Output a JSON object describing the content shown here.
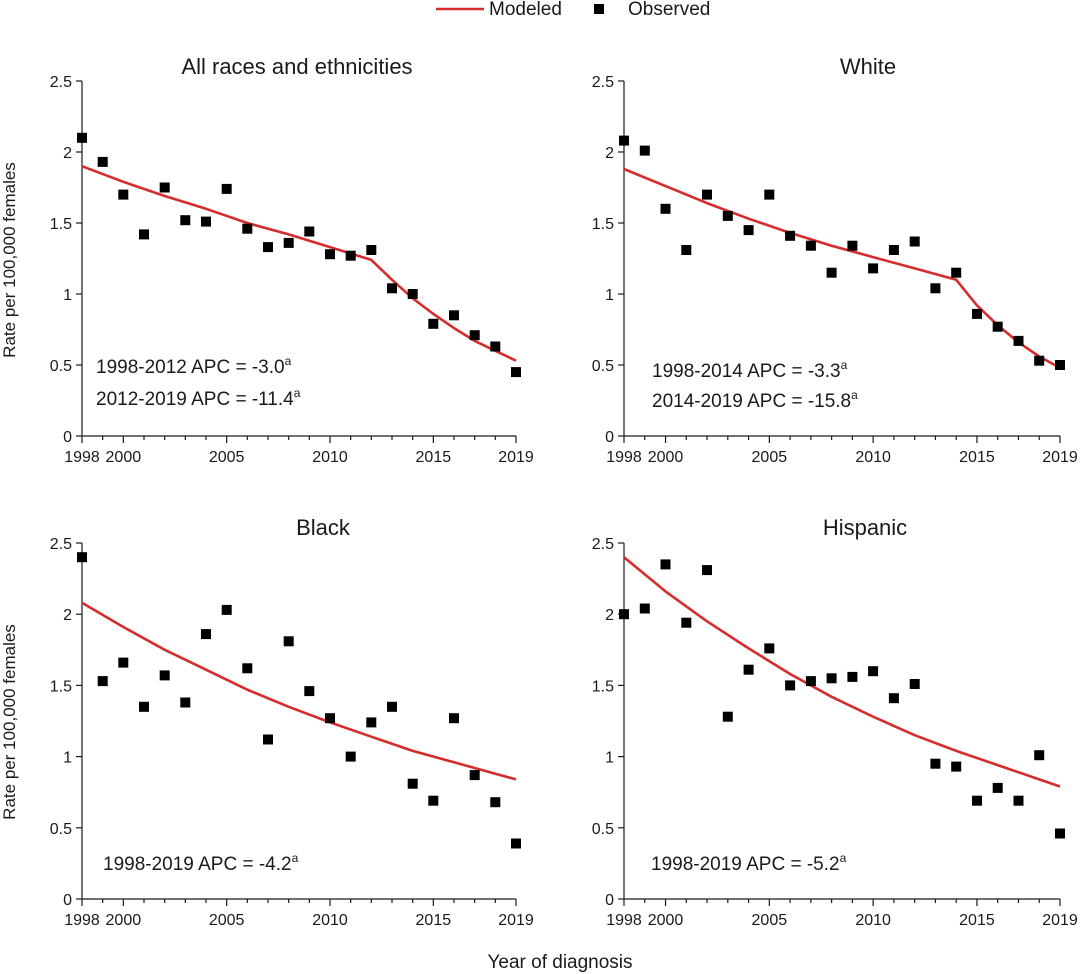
{
  "legend": {
    "modeled_label": "Modeled",
    "observed_label": "Observed"
  },
  "colors": {
    "modeled": "#d62c2c",
    "observed": "#000000",
    "axis": "#1a1a1a"
  },
  "shared_ylabel": "Rate per 100,000 females",
  "shared_xlabel": "Year of diagnosis",
  "chart_data": [
    {
      "type": "line",
      "title": "All races and ethnicities",
      "xlim": [
        1998,
        2019
      ],
      "ylim": [
        0,
        2.5
      ],
      "x_ticks": [
        "1998",
        "2000",
        "2005",
        "2010",
        "2015",
        "2019"
      ],
      "y_ticks": [
        "0",
        "0.5",
        "1",
        "1.5",
        "2",
        "2.5"
      ],
      "series": [
        {
          "name": "Observed",
          "x": [
            1998,
            1999,
            2000,
            2001,
            2002,
            2003,
            2004,
            2005,
            2006,
            2007,
            2008,
            2009,
            2010,
            2011,
            2012,
            2013,
            2014,
            2015,
            2016,
            2017,
            2018,
            2019
          ],
          "values": [
            2.1,
            1.93,
            1.7,
            1.42,
            1.75,
            1.52,
            1.51,
            1.74,
            1.46,
            1.33,
            1.36,
            1.44,
            1.28,
            1.27,
            1.31,
            1.04,
            1.0,
            0.79,
            0.85,
            0.71,
            0.63,
            0.45
          ]
        },
        {
          "name": "Modeled",
          "x": [
            1998,
            2000,
            2002,
            2004,
            2006,
            2008,
            2010,
            2012,
            2013,
            2014,
            2015,
            2016,
            2017,
            2018,
            2019
          ],
          "values": [
            1.9,
            1.79,
            1.69,
            1.6,
            1.5,
            1.42,
            1.33,
            1.24,
            1.1,
            0.97,
            0.86,
            0.76,
            0.67,
            0.6,
            0.53
          ]
        }
      ],
      "annotations": [
        {
          "text": "1998-2012 APC = -3.0",
          "sup": "a"
        },
        {
          "text": "2012-2019 APC = -11.4",
          "sup": "a"
        }
      ]
    },
    {
      "type": "line",
      "title": "White",
      "xlim": [
        1998,
        2019
      ],
      "ylim": [
        0,
        2.5
      ],
      "x_ticks": [
        "1998",
        "2000",
        "2005",
        "2010",
        "2015",
        "2019"
      ],
      "y_ticks": [
        "0",
        "0.5",
        "1",
        "1.5",
        "2",
        "2.5"
      ],
      "series": [
        {
          "name": "Observed",
          "x": [
            1998,
            1999,
            2000,
            2001,
            2002,
            2003,
            2004,
            2005,
            2006,
            2007,
            2008,
            2009,
            2010,
            2011,
            2012,
            2013,
            2014,
            2015,
            2016,
            2017,
            2018,
            2019
          ],
          "values": [
            2.08,
            2.01,
            1.6,
            1.31,
            1.7,
            1.55,
            1.45,
            1.7,
            1.41,
            1.34,
            1.15,
            1.34,
            1.18,
            1.31,
            1.37,
            1.04,
            1.15,
            0.86,
            0.77,
            0.67,
            0.53,
            0.5
          ]
        },
        {
          "name": "Modeled",
          "x": [
            1998,
            2000,
            2002,
            2004,
            2006,
            2008,
            2010,
            2012,
            2014,
            2015,
            2016,
            2017,
            2018,
            2019
          ],
          "values": [
            1.88,
            1.76,
            1.64,
            1.53,
            1.43,
            1.34,
            1.26,
            1.18,
            1.1,
            0.92,
            0.78,
            0.66,
            0.56,
            0.48
          ]
        }
      ],
      "annotations": [
        {
          "text": "1998-2014 APC = -3.3",
          "sup": "a"
        },
        {
          "text": "2014-2019 APC = -15.8",
          "sup": "a"
        }
      ]
    },
    {
      "type": "line",
      "title": "Black",
      "xlim": [
        1998,
        2019
      ],
      "ylim": [
        0,
        2.5
      ],
      "x_ticks": [
        "1998",
        "2000",
        "2005",
        "2010",
        "2015",
        "2019"
      ],
      "y_ticks": [
        "0",
        "0.5",
        "1",
        "1.5",
        "2",
        "2.5"
      ],
      "series": [
        {
          "name": "Observed",
          "x": [
            1998,
            1999,
            2000,
            2001,
            2002,
            2003,
            2004,
            2005,
            2006,
            2007,
            2008,
            2009,
            2010,
            2011,
            2012,
            2013,
            2014,
            2015,
            2016,
            2017,
            2018,
            2019
          ],
          "values": [
            2.4,
            1.53,
            1.66,
            1.35,
            1.57,
            1.38,
            1.86,
            2.03,
            1.62,
            1.12,
            1.81,
            1.46,
            1.27,
            1.0,
            1.24,
            1.35,
            0.81,
            0.69,
            1.27,
            0.87,
            0.68,
            0.39
          ]
        },
        {
          "name": "Modeled",
          "x": [
            1998,
            2000,
            2002,
            2004,
            2006,
            2008,
            2010,
            2012,
            2014,
            2016,
            2018,
            2019
          ],
          "values": [
            2.08,
            1.91,
            1.75,
            1.61,
            1.47,
            1.35,
            1.24,
            1.14,
            1.04,
            0.96,
            0.88,
            0.84
          ]
        }
      ],
      "annotations": [
        {
          "text": "1998-2019 APC = -4.2",
          "sup": "a"
        }
      ]
    },
    {
      "type": "line",
      "title": "Hispanic",
      "xlim": [
        1998,
        2019
      ],
      "ylim": [
        0,
        2.5
      ],
      "x_ticks": [
        "1998",
        "2000",
        "2005",
        "2010",
        "2015",
        "2019"
      ],
      "y_ticks": [
        "0",
        "0.5",
        "1",
        "1.5",
        "2",
        "2.5"
      ],
      "series": [
        {
          "name": "Observed",
          "x": [
            1998,
            1999,
            2000,
            2001,
            2002,
            2003,
            2004,
            2005,
            2006,
            2007,
            2008,
            2009,
            2010,
            2011,
            2012,
            2013,
            2014,
            2015,
            2016,
            2017,
            2018,
            2019
          ],
          "values": [
            2.0,
            2.04,
            2.35,
            1.94,
            2.31,
            1.28,
            1.61,
            1.76,
            1.5,
            1.53,
            1.55,
            1.56,
            1.6,
            1.41,
            1.51,
            0.95,
            0.93,
            0.69,
            0.78,
            0.69,
            1.01,
            0.46
          ]
        },
        {
          "name": "Modeled",
          "x": [
            1998,
            2000,
            2002,
            2004,
            2006,
            2008,
            2010,
            2012,
            2014,
            2016,
            2018,
            2019
          ],
          "values": [
            2.4,
            2.16,
            1.95,
            1.76,
            1.58,
            1.42,
            1.28,
            1.15,
            1.04,
            0.94,
            0.84,
            0.79
          ]
        }
      ],
      "annotations": [
        {
          "text": "1998-2019 APC = -5.2",
          "sup": "a"
        }
      ]
    }
  ]
}
